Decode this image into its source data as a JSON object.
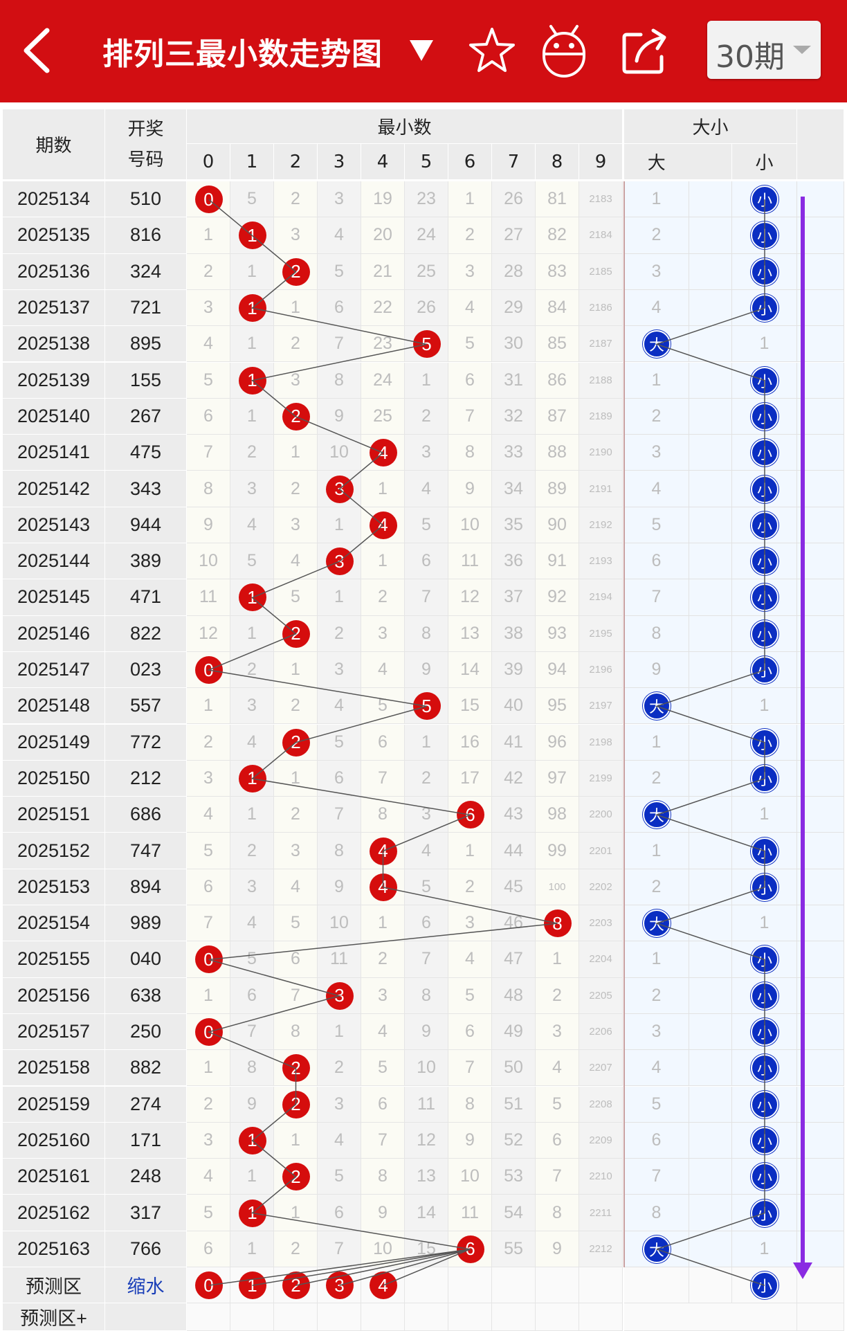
{
  "header": {
    "title": "排列三最小数走势图",
    "period_select": "30期",
    "colors": {
      "bar": "#d20e12",
      "red_ball": "#d50d0d",
      "blue_ball": "#0b2ec2",
      "arrow": "#8a2be2"
    },
    "icons": [
      "back-arrow-icon",
      "dropdown-caret-icon",
      "star-icon",
      "robot-icon",
      "share-icon"
    ]
  },
  "table": {
    "headers": {
      "issue": "期数",
      "winning_line1": "开奖",
      "winning_line2": "号码",
      "min_group": "最小数",
      "size_group": "大小",
      "digits": [
        "0",
        "1",
        "2",
        "3",
        "4",
        "5",
        "6",
        "7",
        "8",
        "9"
      ],
      "size_cols": [
        "大",
        "小"
      ]
    },
    "rows": [
      {
        "issue": "2025134",
        "number": "510",
        "min": 0,
        "miss": [
          "0",
          "5",
          "2",
          "3",
          "19",
          "23",
          "1",
          "26",
          "81",
          "2183"
        ],
        "size": "小",
        "size_miss": [
          "1",
          "小"
        ]
      },
      {
        "issue": "2025135",
        "number": "816",
        "min": 1,
        "miss": [
          "1",
          "1",
          "3",
          "4",
          "20",
          "24",
          "2",
          "27",
          "82",
          "2184"
        ],
        "size": "小",
        "size_miss": [
          "2",
          "小"
        ]
      },
      {
        "issue": "2025136",
        "number": "324",
        "min": 2,
        "miss": [
          "2",
          "1",
          "2",
          "5",
          "21",
          "25",
          "3",
          "28",
          "83",
          "2185"
        ],
        "size": "小",
        "size_miss": [
          "3",
          "小"
        ]
      },
      {
        "issue": "2025137",
        "number": "721",
        "min": 1,
        "miss": [
          "3",
          "1",
          "1",
          "6",
          "22",
          "26",
          "4",
          "29",
          "84",
          "2186"
        ],
        "size": "小",
        "size_miss": [
          "4",
          "小"
        ]
      },
      {
        "issue": "2025138",
        "number": "895",
        "min": 5,
        "miss": [
          "4",
          "1",
          "2",
          "7",
          "23",
          "5",
          "5",
          "30",
          "85",
          "2187"
        ],
        "size": "大",
        "size_miss": [
          "大",
          "1"
        ]
      },
      {
        "issue": "2025139",
        "number": "155",
        "min": 1,
        "miss": [
          "5",
          "1",
          "3",
          "8",
          "24",
          "1",
          "6",
          "31",
          "86",
          "2188"
        ],
        "size": "小",
        "size_miss": [
          "1",
          "小"
        ]
      },
      {
        "issue": "2025140",
        "number": "267",
        "min": 2,
        "miss": [
          "6",
          "1",
          "2",
          "9",
          "25",
          "2",
          "7",
          "32",
          "87",
          "2189"
        ],
        "size": "小",
        "size_miss": [
          "2",
          "小"
        ]
      },
      {
        "issue": "2025141",
        "number": "475",
        "min": 4,
        "miss": [
          "7",
          "2",
          "1",
          "10",
          "4",
          "3",
          "8",
          "33",
          "88",
          "2190"
        ],
        "size": "小",
        "size_miss": [
          "3",
          "小"
        ]
      },
      {
        "issue": "2025142",
        "number": "343",
        "min": 3,
        "miss": [
          "8",
          "3",
          "2",
          "3",
          "1",
          "4",
          "9",
          "34",
          "89",
          "2191"
        ],
        "size": "小",
        "size_miss": [
          "4",
          "小"
        ]
      },
      {
        "issue": "2025143",
        "number": "944",
        "min": 4,
        "miss": [
          "9",
          "4",
          "3",
          "1",
          "4",
          "5",
          "10",
          "35",
          "90",
          "2192"
        ],
        "size": "小",
        "size_miss": [
          "5",
          "小"
        ]
      },
      {
        "issue": "2025144",
        "number": "389",
        "min": 3,
        "miss": [
          "10",
          "5",
          "4",
          "3",
          "1",
          "6",
          "11",
          "36",
          "91",
          "2193"
        ],
        "size": "小",
        "size_miss": [
          "6",
          "小"
        ]
      },
      {
        "issue": "2025145",
        "number": "471",
        "min": 1,
        "miss": [
          "11",
          "1",
          "5",
          "1",
          "2",
          "7",
          "12",
          "37",
          "92",
          "2194"
        ],
        "size": "小",
        "size_miss": [
          "7",
          "小"
        ]
      },
      {
        "issue": "2025146",
        "number": "822",
        "min": 2,
        "miss": [
          "12",
          "1",
          "2",
          "2",
          "3",
          "8",
          "13",
          "38",
          "93",
          "2195"
        ],
        "size": "小",
        "size_miss": [
          "8",
          "小"
        ]
      },
      {
        "issue": "2025147",
        "number": "023",
        "min": 0,
        "miss": [
          "0",
          "2",
          "1",
          "3",
          "4",
          "9",
          "14",
          "39",
          "94",
          "2196"
        ],
        "size": "小",
        "size_miss": [
          "9",
          "小"
        ]
      },
      {
        "issue": "2025148",
        "number": "557",
        "min": 5,
        "miss": [
          "1",
          "3",
          "2",
          "4",
          "5",
          "5",
          "15",
          "40",
          "95",
          "2197"
        ],
        "size": "大",
        "size_miss": [
          "大",
          "1"
        ]
      },
      {
        "issue": "2025149",
        "number": "772",
        "min": 2,
        "miss": [
          "2",
          "4",
          "2",
          "5",
          "6",
          "1",
          "16",
          "41",
          "96",
          "2198"
        ],
        "size": "小",
        "size_miss": [
          "1",
          "小"
        ]
      },
      {
        "issue": "2025150",
        "number": "212",
        "min": 1,
        "miss": [
          "3",
          "1",
          "1",
          "6",
          "7",
          "2",
          "17",
          "42",
          "97",
          "2199"
        ],
        "size": "小",
        "size_miss": [
          "2",
          "小"
        ]
      },
      {
        "issue": "2025151",
        "number": "686",
        "min": 6,
        "miss": [
          "4",
          "1",
          "2",
          "7",
          "8",
          "3",
          "6",
          "43",
          "98",
          "2200"
        ],
        "size": "大",
        "size_miss": [
          "大",
          "1"
        ]
      },
      {
        "issue": "2025152",
        "number": "747",
        "min": 4,
        "miss": [
          "5",
          "2",
          "3",
          "8",
          "4",
          "4",
          "1",
          "44",
          "99",
          "2201"
        ],
        "size": "小",
        "size_miss": [
          "1",
          "小"
        ]
      },
      {
        "issue": "2025153",
        "number": "894",
        "min": 4,
        "miss": [
          "6",
          "3",
          "4",
          "9",
          "4",
          "5",
          "2",
          "45",
          "100",
          "2202"
        ],
        "size": "小",
        "size_miss": [
          "2",
          "小"
        ]
      },
      {
        "issue": "2025154",
        "number": "989",
        "min": 8,
        "miss": [
          "7",
          "4",
          "5",
          "10",
          "1",
          "6",
          "3",
          "46",
          "8",
          "2203"
        ],
        "size": "大",
        "size_miss": [
          "大",
          "1"
        ]
      },
      {
        "issue": "2025155",
        "number": "040",
        "min": 0,
        "miss": [
          "0",
          "5",
          "6",
          "11",
          "2",
          "7",
          "4",
          "47",
          "1",
          "2204"
        ],
        "size": "小",
        "size_miss": [
          "1",
          "小"
        ]
      },
      {
        "issue": "2025156",
        "number": "638",
        "min": 3,
        "miss": [
          "1",
          "6",
          "7",
          "3",
          "3",
          "8",
          "5",
          "48",
          "2",
          "2205"
        ],
        "size": "小",
        "size_miss": [
          "2",
          "小"
        ]
      },
      {
        "issue": "2025157",
        "number": "250",
        "min": 0,
        "miss": [
          "0",
          "7",
          "8",
          "1",
          "4",
          "9",
          "6",
          "49",
          "3",
          "2206"
        ],
        "size": "小",
        "size_miss": [
          "3",
          "小"
        ]
      },
      {
        "issue": "2025158",
        "number": "882",
        "min": 2,
        "miss": [
          "1",
          "8",
          "2",
          "2",
          "5",
          "10",
          "7",
          "50",
          "4",
          "2207"
        ],
        "size": "小",
        "size_miss": [
          "4",
          "小"
        ]
      },
      {
        "issue": "2025159",
        "number": "274",
        "min": 2,
        "miss": [
          "2",
          "9",
          "2",
          "3",
          "6",
          "11",
          "8",
          "51",
          "5",
          "2208"
        ],
        "size": "小",
        "size_miss": [
          "5",
          "小"
        ]
      },
      {
        "issue": "2025160",
        "number": "171",
        "min": 1,
        "miss": [
          "3",
          "1",
          "1",
          "4",
          "7",
          "12",
          "9",
          "52",
          "6",
          "2209"
        ],
        "size": "小",
        "size_miss": [
          "6",
          "小"
        ]
      },
      {
        "issue": "2025161",
        "number": "248",
        "min": 2,
        "miss": [
          "4",
          "1",
          "2",
          "5",
          "8",
          "13",
          "10",
          "53",
          "7",
          "2210"
        ],
        "size": "小",
        "size_miss": [
          "7",
          "小"
        ]
      },
      {
        "issue": "2025162",
        "number": "317",
        "min": 1,
        "miss": [
          "5",
          "1",
          "1",
          "6",
          "9",
          "14",
          "11",
          "54",
          "8",
          "2211"
        ],
        "size": "小",
        "size_miss": [
          "8",
          "小"
        ]
      },
      {
        "issue": "2025163",
        "number": "766",
        "min": 6,
        "miss": [
          "6",
          "1",
          "2",
          "7",
          "10",
          "15",
          "6",
          "55",
          "9",
          "2212"
        ],
        "size": "大",
        "size_miss": [
          "大",
          "1"
        ]
      }
    ],
    "predict_row": {
      "label": "预测区",
      "link": "缩水",
      "balls": [
        "0",
        "1",
        "2",
        "3",
        "4"
      ],
      "size_ball": "小"
    },
    "predict_plus_label": "预测区+"
  }
}
